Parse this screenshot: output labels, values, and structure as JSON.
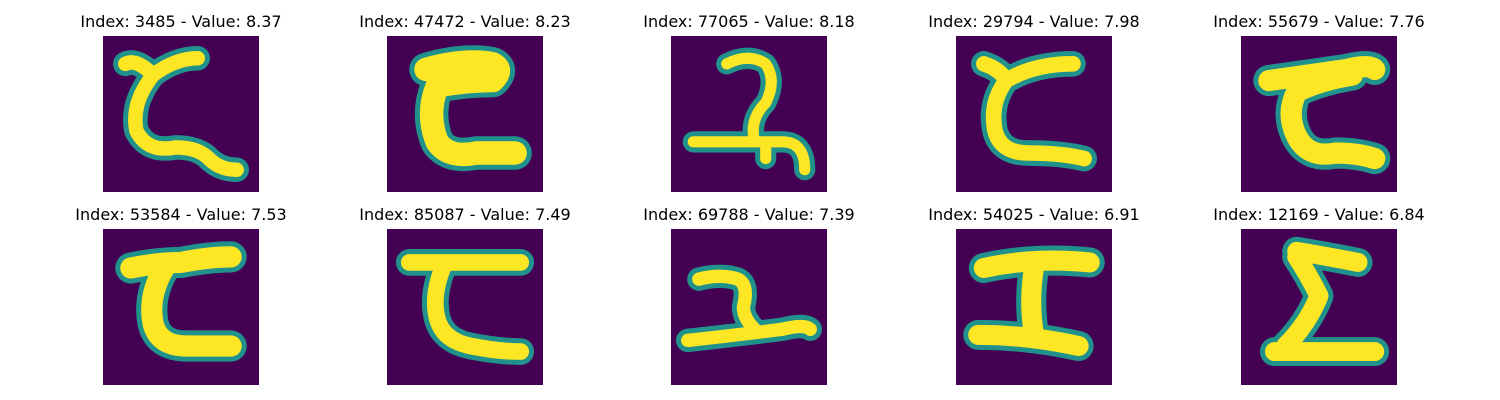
{
  "figure": {
    "colors": {
      "background": "#440154",
      "stroke_edge": "#21918c",
      "stroke_fill": "#fde725"
    },
    "panels": [
      {
        "title": "Index: 3485 - Value: 8.37",
        "glyph": "rotated-two-variant-a"
      },
      {
        "title": "Index: 47472 - Value: 8.23",
        "glyph": "thick-c-shape"
      },
      {
        "title": "Index: 77065 - Value: 8.18",
        "glyph": "hook-with-crossbar"
      },
      {
        "title": "Index: 29794 - Value: 7.98",
        "glyph": "rotated-two-variant-b"
      },
      {
        "title": "Index: 55679 - Value: 7.76",
        "glyph": "rotated-two-variant-c"
      },
      {
        "title": "Index: 53584 - Value: 7.53",
        "glyph": "rotated-two-variant-d"
      },
      {
        "title": "Index: 85087 - Value: 7.49",
        "glyph": "open-c-shape"
      },
      {
        "title": "Index: 69788 - Value: 7.39",
        "glyph": "small-hook-with-base"
      },
      {
        "title": "Index: 54025 - Value: 6.91",
        "glyph": "i-beam-shape"
      },
      {
        "title": "Index: 12169 - Value: 6.84",
        "glyph": "z-shape"
      }
    ]
  }
}
